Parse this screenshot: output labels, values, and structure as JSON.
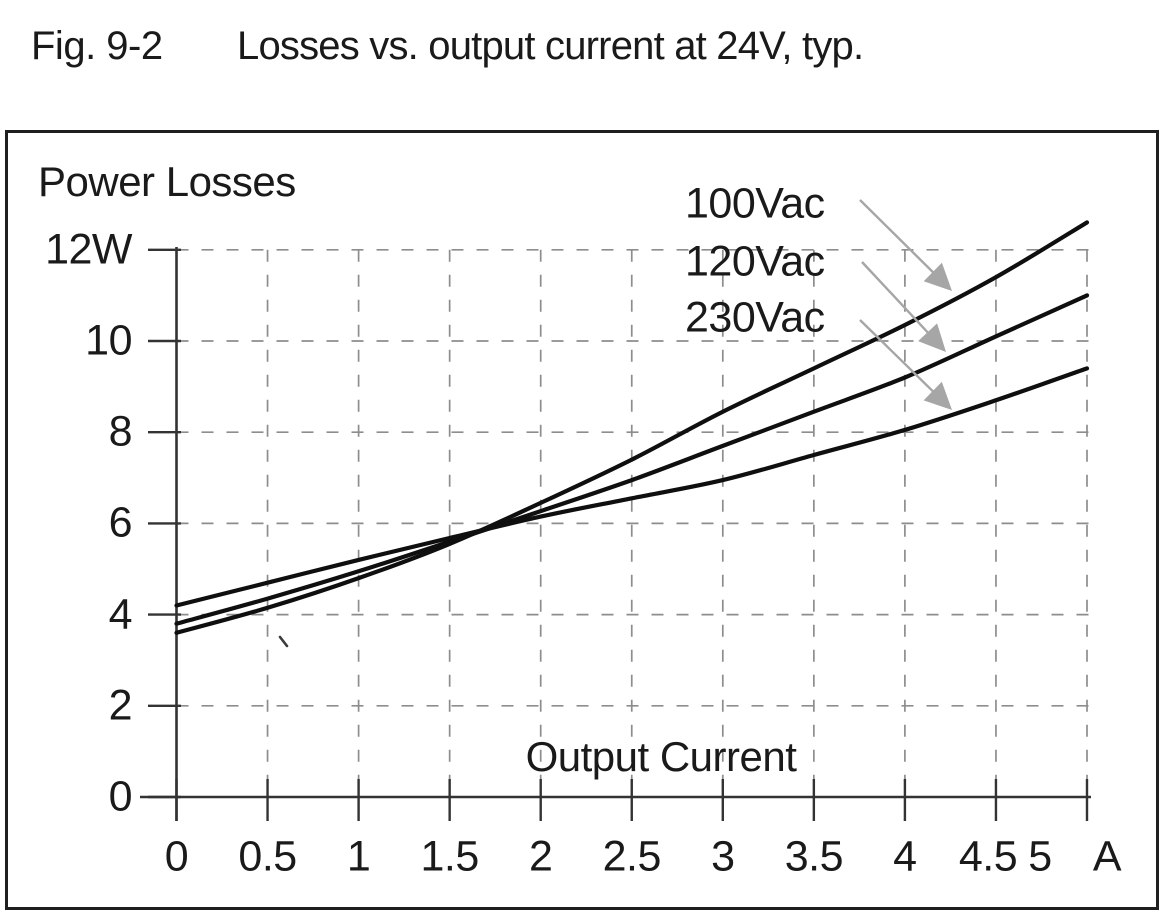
{
  "title": {
    "fig_label": "Fig. 9-2",
    "text": "Losses vs. output current at 24V, typ."
  },
  "axis_labels": {
    "y_title": "Power Losses",
    "x_title": "Output Current",
    "y_top_label": "12W",
    "x_unit": "A"
  },
  "chart_data": {
    "type": "line",
    "title": "Losses vs. output current at 24V, typ.",
    "ylabel": "Power Losses",
    "xlabel": "Output Current",
    "y_unit": "W",
    "x_unit": "A",
    "x": [
      0,
      0.5,
      1,
      1.5,
      2,
      2.5,
      3,
      3.5,
      4,
      4.5,
      5
    ],
    "series": [
      {
        "name": "100Vac",
        "values": [
          3.6,
          4.15,
          4.8,
          5.55,
          6.45,
          7.4,
          8.45,
          9.4,
          10.35,
          11.4,
          12.6
        ]
      },
      {
        "name": "120Vac",
        "values": [
          3.8,
          4.35,
          4.95,
          5.6,
          6.27,
          6.95,
          7.7,
          8.45,
          9.2,
          10.1,
          11.0
        ]
      },
      {
        "name": "230Vac",
        "values": [
          4.2,
          4.7,
          5.2,
          5.68,
          6.15,
          6.55,
          6.95,
          7.5,
          8.05,
          8.7,
          9.4
        ]
      }
    ],
    "xlim": [
      0,
      5
    ],
    "ylim": [
      0,
      12
    ],
    "x_tick_labels": [
      "0",
      "0.5",
      "1",
      "1.5",
      "2",
      "2.5",
      "3",
      "3.5",
      "4",
      "4.5",
      "5"
    ],
    "y_tick_values": [
      12,
      10,
      8,
      6,
      4,
      2,
      0
    ],
    "y_tick_labels": [
      "12W",
      "10",
      "8",
      "6",
      "4",
      "2",
      "0"
    ],
    "grid": true,
    "grid_style": "dashed",
    "legend_position": "annotations-top-right-with-arrows",
    "colors": {
      "line": "#0f0f0f",
      "axis": "#333333",
      "grid": "#8d8d8d",
      "arrow": "#a6a6a6",
      "text": "#1a1a1a"
    }
  }
}
